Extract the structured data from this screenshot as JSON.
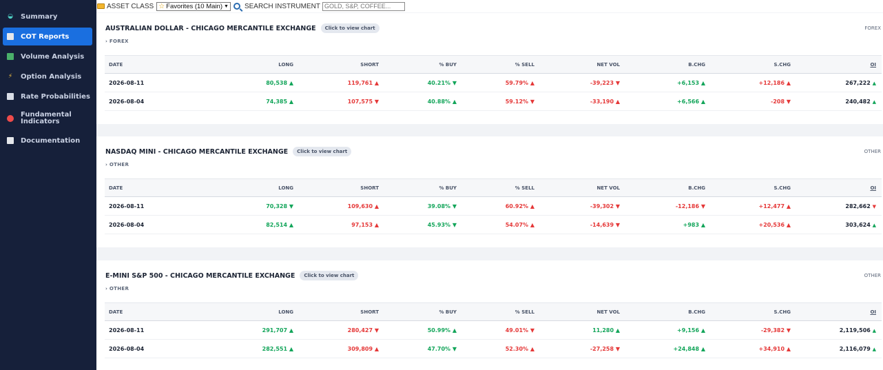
{
  "sidebar": {
    "items": [
      {
        "label": "Summary",
        "icon": "summary-icon",
        "active": false
      },
      {
        "label": "COT Reports",
        "icon": "report-icon",
        "active": true
      },
      {
        "label": "Volume Analysis",
        "icon": "bar-chart-icon",
        "active": false
      },
      {
        "label": "Option Analysis",
        "icon": "lightning-icon",
        "active": false
      },
      {
        "label": "Rate Probabilities",
        "icon": "rate-icon",
        "active": false
      },
      {
        "label": "Fundamental Indicators",
        "icon": "target-icon",
        "active": false
      },
      {
        "label": "Documentation",
        "icon": "document-icon",
        "active": false
      }
    ]
  },
  "topbar": {
    "asset_class_label": "ASSET CLASS",
    "asset_class_value": "Favorites (10 Main)",
    "search_label": "SEARCH INSTRUMENT",
    "search_placeholder": "GOLD, S&P, COFFEE..."
  },
  "columns": [
    "DATE",
    "LONG",
    "SHORT",
    "% BUY",
    "% SELL",
    "NET VOL",
    "B.CHG",
    "S.CHG",
    "OI"
  ],
  "chart_button_label": "Click to view chart",
  "colors": {
    "up": "#13a55a",
    "down": "#e53838",
    "accent": "#1a6fe0"
  },
  "cards": [
    {
      "title": "AUSTRALIAN DOLLAR - CHICAGO MERCANTILE EXCHANGE",
      "subtitle": "› FOREX",
      "class": "FOREX",
      "rows": [
        {
          "date": "2026-08-11",
          "long": "80,538 ▲",
          "short": "119,761 ▲",
          "buy": "40.21% ▼",
          "sell": "59.79% ▲",
          "net": "-39,223 ▼",
          "bchg": "+6,153 ▲",
          "schg": "+12,186 ▲",
          "oi": "267,222 ▲",
          "oi_dir": "up"
        },
        {
          "date": "2026-08-04",
          "long": "74,385 ▲",
          "short": "107,575 ▼",
          "buy": "40.88% ▲",
          "sell": "59.12% ▼",
          "net": "-33,190 ▲",
          "bchg": "+6,566 ▲",
          "schg": "-208 ▼",
          "oi": "240,482 ▲",
          "oi_dir": "up"
        }
      ]
    },
    {
      "title": "NASDAQ MINI - CHICAGO MERCANTILE EXCHANGE",
      "subtitle": "› OTHER",
      "class": "OTHER",
      "rows": [
        {
          "date": "2026-08-11",
          "long": "70,328 ▼",
          "short": "109,630 ▲",
          "buy": "39.08% ▼",
          "sell": "60.92% ▲",
          "net": "-39,302 ▼",
          "bchg": "-12,186 ▼",
          "schg": "+12,477 ▲",
          "oi": "282,662 ▼",
          "oi_dir": "down"
        },
        {
          "date": "2026-08-04",
          "long": "82,514 ▲",
          "short": "97,153 ▲",
          "buy": "45.93% ▼",
          "sell": "54.07% ▲",
          "net": "-14,639 ▼",
          "bchg": "+983 ▲",
          "schg": "+20,536 ▲",
          "oi": "303,624 ▲",
          "oi_dir": "up"
        }
      ]
    },
    {
      "title": "E-MINI S&P 500 - CHICAGO MERCANTILE EXCHANGE",
      "subtitle": "› OTHER",
      "class": "OTHER",
      "rows": [
        {
          "date": "2026-08-11",
          "long": "291,707 ▲",
          "short": "280,427 ▼",
          "buy": "50.99% ▲",
          "sell": "49.01% ▼",
          "net": "11,280 ▲",
          "bchg": "+9,156 ▲",
          "schg": "-29,382 ▼",
          "oi": "2,119,506 ▲",
          "oi_dir": "up"
        },
        {
          "date": "2026-08-04",
          "long": "282,551 ▲",
          "short": "309,809 ▲",
          "buy": "47.70% ▼",
          "sell": "52.30% ▲",
          "net": "-27,258 ▼",
          "bchg": "+24,848 ▲",
          "schg": "+34,910 ▲",
          "oi": "2,116,079 ▲",
          "oi_dir": "up"
        }
      ]
    }
  ]
}
